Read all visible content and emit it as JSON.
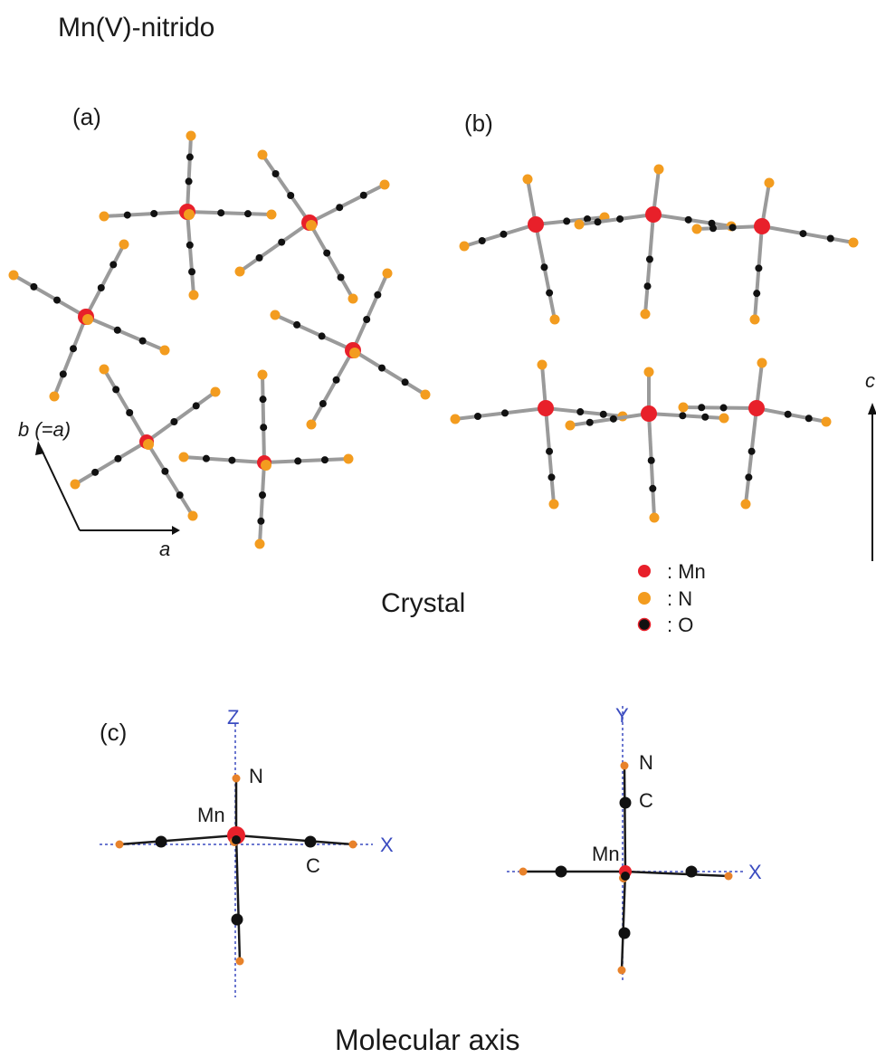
{
  "title": "Mn(V)-nitrido",
  "panels": {
    "a": "(a)",
    "b": "(b)",
    "c": "(c)"
  },
  "crystal": {
    "caption": "Crystal",
    "axis_b": "b (=a)",
    "axis_a": "a",
    "axis_c": "c"
  },
  "legend": {
    "mn": ": Mn",
    "n": ": N",
    "o": ": O"
  },
  "molecular": {
    "caption": "Molecular axis",
    "left": {
      "z_axis": "Z",
      "x_axis": "X",
      "n_label": "N",
      "mn_label": "Mn",
      "c_label": "C"
    },
    "right": {
      "y_axis": "Y",
      "x_axis": "X",
      "n_label": "N",
      "mn_label": "Mn",
      "c_label": "C"
    }
  },
  "colors": {
    "mn": "#e8202a",
    "n": "#f39c1f",
    "o": "#111111",
    "bond_crystal": "#9a9a9a",
    "bond_molecule": "#1a1a1a",
    "axis": "#3b4cc0"
  }
}
